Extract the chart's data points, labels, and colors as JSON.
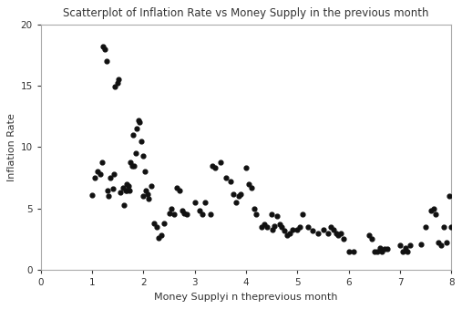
{
  "title": "Scatterplot of Inflation Rate vs Money Supply in the previous month",
  "xlabel": "Money Supplyi n theprevious month",
  "ylabel": "Inflation Rate",
  "xlim": [
    0,
    8
  ],
  "ylim": [
    0,
    20
  ],
  "xticks": [
    0,
    1,
    2,
    3,
    4,
    5,
    6,
    7,
    8
  ],
  "yticks": [
    0,
    5,
    10,
    15,
    20
  ],
  "marker_color": "#111111",
  "marker_size": 12,
  "background_color": "#ffffff",
  "spine_color": "#aaaaaa",
  "x": [
    1.0,
    1.05,
    1.1,
    1.15,
    1.2,
    1.22,
    1.25,
    1.28,
    1.3,
    1.32,
    1.35,
    1.4,
    1.42,
    1.45,
    1.5,
    1.52,
    1.55,
    1.6,
    1.62,
    1.65,
    1.67,
    1.68,
    1.7,
    1.72,
    1.75,
    1.78,
    1.8,
    1.82,
    1.85,
    1.87,
    1.9,
    1.92,
    1.95,
    2.0,
    2.0,
    2.02,
    2.05,
    2.08,
    2.1,
    2.15,
    2.2,
    2.25,
    2.3,
    2.35,
    2.4,
    2.5,
    2.55,
    2.6,
    2.65,
    2.7,
    2.75,
    2.8,
    2.85,
    3.0,
    3.1,
    3.15,
    3.2,
    3.3,
    3.35,
    3.4,
    3.5,
    3.6,
    3.7,
    3.75,
    3.8,
    3.85,
    3.9,
    4.0,
    4.05,
    4.1,
    4.15,
    4.2,
    4.3,
    4.35,
    4.4,
    4.5,
    4.52,
    4.55,
    4.6,
    4.65,
    4.7,
    4.75,
    4.8,
    4.85,
    4.9,
    5.0,
    5.05,
    5.1,
    5.2,
    5.3,
    5.4,
    5.5,
    5.6,
    5.65,
    5.7,
    5.75,
    5.8,
    5.85,
    5.9,
    6.0,
    6.1,
    6.4,
    6.45,
    6.5,
    6.55,
    6.6,
    6.65,
    6.7,
    6.75,
    7.0,
    7.05,
    7.1,
    7.15,
    7.2,
    7.4,
    7.5,
    7.6,
    7.65,
    7.7,
    7.75,
    7.8,
    7.85,
    7.9,
    7.95,
    8.0
  ],
  "y": [
    6.1,
    7.5,
    8.0,
    7.8,
    8.8,
    18.2,
    18.0,
    17.0,
    6.5,
    6.0,
    7.5,
    6.6,
    7.8,
    14.9,
    15.2,
    15.5,
    6.3,
    6.7,
    5.3,
    6.5,
    6.5,
    7.0,
    6.8,
    6.5,
    8.8,
    8.5,
    11.0,
    8.5,
    9.5,
    11.5,
    12.2,
    12.0,
    10.5,
    6.0,
    9.3,
    8.0,
    6.5,
    6.2,
    5.8,
    6.8,
    3.8,
    3.5,
    2.6,
    2.8,
    3.8,
    4.6,
    5.0,
    4.5,
    6.7,
    6.5,
    4.8,
    4.6,
    4.5,
    5.5,
    4.8,
    4.5,
    5.5,
    4.5,
    8.5,
    8.3,
    8.8,
    7.5,
    7.2,
    6.2,
    5.5,
    6.0,
    6.2,
    8.3,
    7.0,
    6.7,
    5.0,
    4.5,
    3.5,
    3.7,
    3.5,
    4.5,
    3.3,
    3.6,
    4.4,
    3.7,
    3.5,
    3.2,
    2.8,
    3.0,
    3.3,
    3.3,
    3.5,
    4.5,
    3.5,
    3.2,
    3.0,
    3.3,
    3.0,
    3.5,
    3.3,
    3.0,
    2.8,
    3.0,
    2.5,
    1.5,
    1.5,
    2.8,
    2.5,
    1.5,
    1.5,
    1.8,
    1.5,
    1.7,
    1.7,
    2.0,
    1.5,
    1.8,
    1.5,
    2.0,
    2.1,
    3.5,
    4.8,
    5.0,
    4.5,
    2.2,
    2.0,
    3.5,
    2.2,
    6.0,
    3.5
  ]
}
